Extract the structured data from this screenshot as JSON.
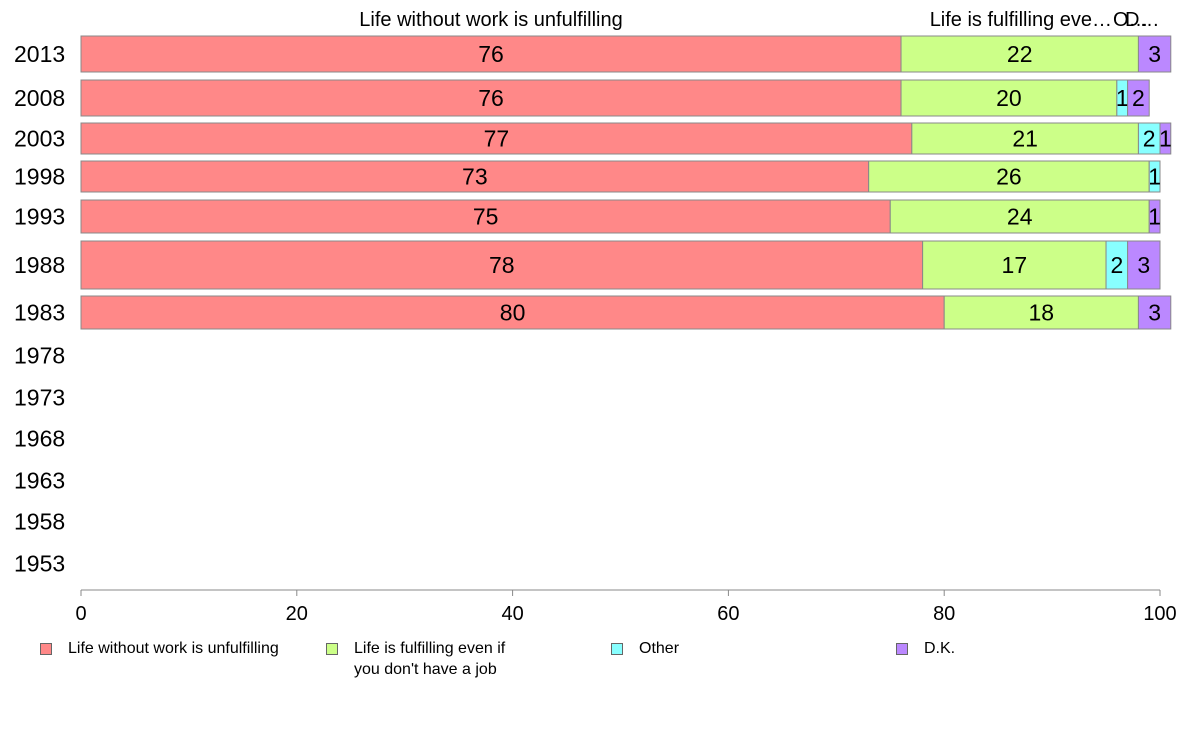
{
  "chart_data": {
    "type": "bar",
    "orientation": "horizontal",
    "stacked": true,
    "categories": [
      "2013",
      "2008",
      "2003",
      "1998",
      "1993",
      "1988",
      "1983",
      "1978",
      "1973",
      "1968",
      "1963",
      "1958",
      "1953"
    ],
    "series": [
      {
        "name": "Life without work is unfulfilling",
        "top_label": "Life without work is unfulfilling",
        "color": "#ff8888",
        "values": [
          76,
          76,
          77,
          73,
          75,
          78,
          80,
          null,
          null,
          null,
          null,
          null,
          null
        ]
      },
      {
        "name": "Life is fulfilling even if you don't have a job",
        "top_label": "Life is fulfilling eve…",
        "color": "#ccff88",
        "values": [
          22,
          20,
          21,
          26,
          24,
          17,
          18,
          null,
          null,
          null,
          null,
          null,
          null
        ]
      },
      {
        "name": "Other",
        "top_label": "O…",
        "color": "#88ffff",
        "values": [
          0,
          1,
          2,
          1,
          0,
          2,
          0,
          null,
          null,
          null,
          null,
          null,
          null
        ]
      },
      {
        "name": "D.K.",
        "top_label": "D…",
        "color": "#bb88ff",
        "values": [
          3,
          2,
          1,
          0,
          1,
          3,
          3,
          null,
          null,
          null,
          null,
          null,
          null
        ]
      }
    ],
    "xlim": [
      0,
      100
    ],
    "xticks": [
      0,
      20,
      40,
      60,
      80,
      100
    ],
    "xlabel": "",
    "ylabel": "",
    "grid": false,
    "legend_position": "bottom"
  },
  "legend": {
    "items": [
      {
        "lines": [
          "Life without work is unfulfilling"
        ],
        "color": "#ff8888"
      },
      {
        "lines": [
          "Life is fulfilling even if",
          "you don't have a job"
        ],
        "color": "#ccff88"
      },
      {
        "lines": [
          "Other"
        ],
        "color": "#88ffff"
      },
      {
        "lines": [
          "D.K."
        ],
        "color": "#bb88ff"
      }
    ]
  }
}
